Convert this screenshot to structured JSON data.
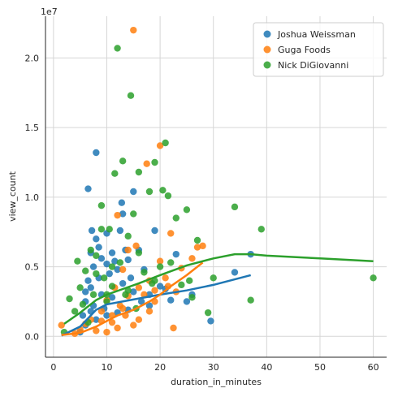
{
  "chart_data": {
    "type": "scatter",
    "title": "",
    "xlabel": "duration_in_minutes",
    "ylabel": "view_count",
    "y_offset_text": "1e7",
    "xlim": [
      -1.5,
      62.5
    ],
    "ylim": [
      -1500000,
      23000000
    ],
    "x_ticks": [
      0,
      10,
      20,
      30,
      40,
      50,
      60
    ],
    "x_tick_labels": [
      "0",
      "10",
      "20",
      "30",
      "40",
      "50",
      "60"
    ],
    "y_ticks": [
      0,
      5000000,
      10000000,
      15000000,
      20000000
    ],
    "y_tick_labels": [
      "0.0",
      "0.5",
      "1.0",
      "1.5",
      "2.0"
    ],
    "grid": true,
    "legend_position": "top-right",
    "series": [
      {
        "name": "Joshua Weissman",
        "color": "#1f77b4",
        "points": [
          [
            5,
            300000
          ],
          [
            5.5,
            1500000
          ],
          [
            6,
            2500000
          ],
          [
            6,
            3200000
          ],
          [
            6.5,
            4000000
          ],
          [
            6.5,
            10600000
          ],
          [
            7,
            1800000
          ],
          [
            7,
            3500000
          ],
          [
            7,
            6000000
          ],
          [
            7.2,
            7600000
          ],
          [
            7.5,
            5000000
          ],
          [
            7.5,
            2200000
          ],
          [
            8,
            13200000
          ],
          [
            8,
            7000000
          ],
          [
            8.5,
            6400000
          ],
          [
            8.5,
            4200000
          ],
          [
            9,
            5600000
          ],
          [
            9,
            3000000
          ],
          [
            9.5,
            2000000
          ],
          [
            10,
            7400000
          ],
          [
            10,
            5200000
          ],
          [
            10.5,
            4500000
          ],
          [
            11,
            6000000
          ],
          [
            11,
            2800000
          ],
          [
            11.5,
            5400000
          ],
          [
            12,
            4800000
          ],
          [
            12.5,
            7600000
          ],
          [
            12.8,
            9600000
          ],
          [
            13,
            8800000
          ],
          [
            13.5,
            6200000
          ],
          [
            13,
            3800000
          ],
          [
            14,
            5500000
          ],
          [
            14.5,
            4200000
          ],
          [
            15,
            10400000
          ],
          [
            15,
            3200000
          ],
          [
            16,
            6200000
          ],
          [
            16.5,
            2500000
          ],
          [
            17,
            4800000
          ],
          [
            18,
            3000000
          ],
          [
            19,
            7600000
          ],
          [
            20,
            3600000
          ],
          [
            21,
            3400000
          ],
          [
            22,
            2600000
          ],
          [
            23,
            5900000
          ],
          [
            25,
            2500000
          ],
          [
            26,
            3000000
          ],
          [
            29.5,
            1100000
          ],
          [
            34,
            4600000
          ],
          [
            37,
            5900000
          ],
          [
            12,
            1700000
          ],
          [
            14,
            1900000
          ],
          [
            18,
            2200000
          ],
          [
            6,
            800000
          ],
          [
            8,
            1200000
          ],
          [
            10,
            1500000
          ]
        ],
        "trend": [
          [
            1.5,
            50000
          ],
          [
            5,
            700000
          ],
          [
            8,
            1900000
          ],
          [
            10,
            2300000
          ],
          [
            15,
            2650000
          ],
          [
            20,
            3000000
          ],
          [
            25,
            3300000
          ],
          [
            30,
            3700000
          ],
          [
            37,
            4400000
          ]
        ]
      },
      {
        "name": "Guga Foods",
        "color": "#ff7f0e",
        "points": [
          [
            1.5,
            800000
          ],
          [
            4,
            200000
          ],
          [
            5,
            500000
          ],
          [
            6,
            900000
          ],
          [
            7,
            1200000
          ],
          [
            8,
            400000
          ],
          [
            9,
            1800000
          ],
          [
            10,
            300000
          ],
          [
            10,
            2600000
          ],
          [
            11,
            1000000
          ],
          [
            11.5,
            3500000
          ],
          [
            12,
            8700000
          ],
          [
            12,
            600000
          ],
          [
            12.5,
            2200000
          ],
          [
            13,
            4800000
          ],
          [
            13.5,
            1500000
          ],
          [
            14,
            2900000
          ],
          [
            14,
            6200000
          ],
          [
            15,
            22000000
          ],
          [
            15,
            800000
          ],
          [
            15.5,
            6500000
          ],
          [
            16,
            1200000
          ],
          [
            17,
            3000000
          ],
          [
            17.5,
            12400000
          ],
          [
            18,
            4000000
          ],
          [
            18,
            1800000
          ],
          [
            19,
            2500000
          ],
          [
            20,
            13700000
          ],
          [
            20,
            5400000
          ],
          [
            21,
            4200000
          ],
          [
            21.5,
            3600000
          ],
          [
            22,
            7400000
          ],
          [
            22.5,
            600000
          ],
          [
            23,
            3200000
          ],
          [
            24,
            4900000
          ],
          [
            26,
            5600000
          ],
          [
            27,
            6400000
          ],
          [
            28,
            6500000
          ],
          [
            16,
            3500000
          ],
          [
            13,
            2000000
          ],
          [
            9,
            1100000
          ],
          [
            11,
            1500000
          ],
          [
            19,
            3300000
          ]
        ],
        "trend": [
          [
            1.5,
            100000
          ],
          [
            5,
            250000
          ],
          [
            8,
            700000
          ],
          [
            10,
            1100000
          ],
          [
            12,
            1500000
          ],
          [
            15,
            1900000
          ],
          [
            18,
            2500000
          ],
          [
            20,
            3000000
          ],
          [
            22,
            3600000
          ],
          [
            25,
            4400000
          ],
          [
            28,
            5300000
          ]
        ]
      },
      {
        "name": "Nick DiGiovanni",
        "color": "#2ca02c",
        "points": [
          [
            2,
            300000
          ],
          [
            3,
            2700000
          ],
          [
            4,
            1800000
          ],
          [
            4.5,
            5400000
          ],
          [
            5,
            3500000
          ],
          [
            5.5,
            2300000
          ],
          [
            6,
            4700000
          ],
          [
            6.5,
            1000000
          ],
          [
            7,
            6200000
          ],
          [
            7.5,
            3000000
          ],
          [
            8,
            5800000
          ],
          [
            9,
            9400000
          ],
          [
            9,
            7700000
          ],
          [
            9.5,
            4200000
          ],
          [
            10,
            2500000
          ],
          [
            10.5,
            7700000
          ],
          [
            11,
            3600000
          ],
          [
            11.5,
            11700000
          ],
          [
            12,
            20700000
          ],
          [
            12.5,
            5300000
          ],
          [
            13,
            12600000
          ],
          [
            13.5,
            3000000
          ],
          [
            14,
            7200000
          ],
          [
            14.5,
            17300000
          ],
          [
            15,
            8800000
          ],
          [
            15.5,
            2000000
          ],
          [
            16,
            11800000
          ],
          [
            17,
            4600000
          ],
          [
            18,
            10400000
          ],
          [
            18.5,
            3800000
          ],
          [
            19,
            12500000
          ],
          [
            20,
            5000000
          ],
          [
            20.5,
            10500000
          ],
          [
            21,
            13900000
          ],
          [
            21.5,
            10100000
          ],
          [
            22,
            5300000
          ],
          [
            23,
            8500000
          ],
          [
            24,
            3700000
          ],
          [
            25,
            9100000
          ],
          [
            25.5,
            4000000
          ],
          [
            26,
            2800000
          ],
          [
            27,
            6900000
          ],
          [
            29,
            1700000
          ],
          [
            30,
            4200000
          ],
          [
            34,
            9300000
          ],
          [
            37,
            2600000
          ],
          [
            39,
            7700000
          ],
          [
            60,
            4200000
          ],
          [
            8,
            4500000
          ],
          [
            11,
            5000000
          ],
          [
            14,
            3300000
          ],
          [
            16,
            6000000
          ],
          [
            19,
            4000000
          ],
          [
            10,
            3000000
          ]
        ],
        "trend": [
          [
            2,
            900000
          ],
          [
            5,
            1700000
          ],
          [
            8,
            2600000
          ],
          [
            10,
            3000000
          ],
          [
            13,
            3400000
          ],
          [
            16,
            3800000
          ],
          [
            20,
            4400000
          ],
          [
            25,
            5100000
          ],
          [
            30,
            5600000
          ],
          [
            34,
            5900000
          ],
          [
            37,
            5900000
          ],
          [
            40,
            5800000
          ],
          [
            50,
            5600000
          ],
          [
            60,
            5400000
          ]
        ]
      }
    ]
  }
}
